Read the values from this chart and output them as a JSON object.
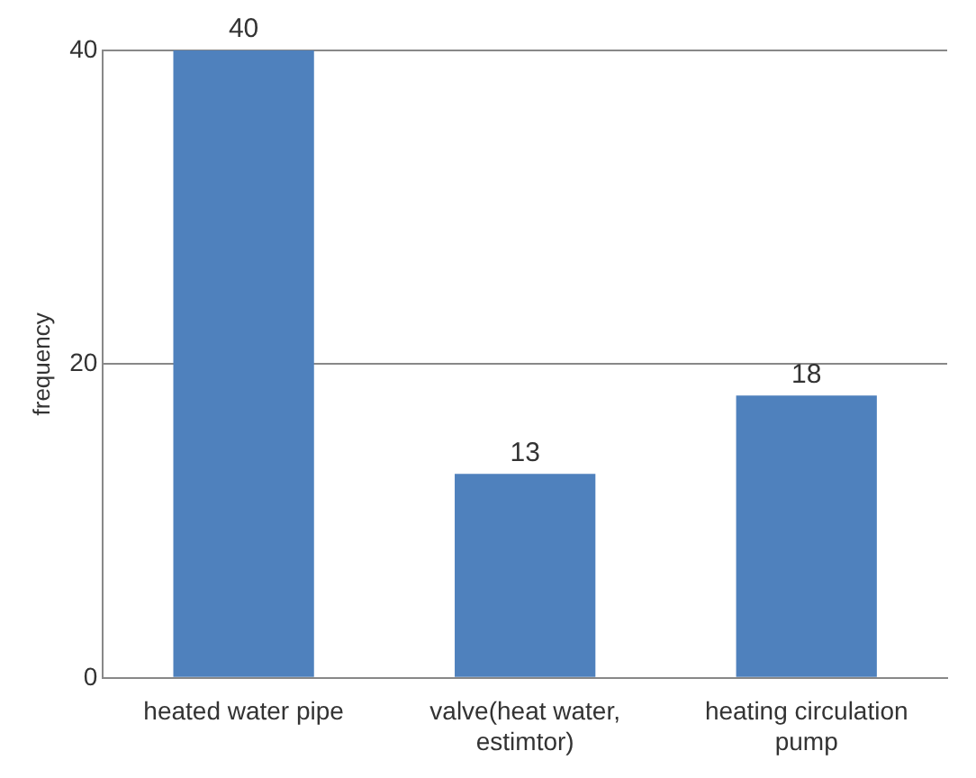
{
  "chart_data": {
    "type": "bar",
    "ylabel": "frequency",
    "categories": [
      "heated water pipe",
      "valve(heat water, estimtor)",
      "heating circulation pump"
    ],
    "values": [
      40,
      13,
      18
    ],
    "color": "#4f81bd",
    "ylim": [
      0,
      40
    ],
    "yticks": [
      0,
      20,
      40
    ],
    "grid": "y",
    "data_labels": true
  }
}
